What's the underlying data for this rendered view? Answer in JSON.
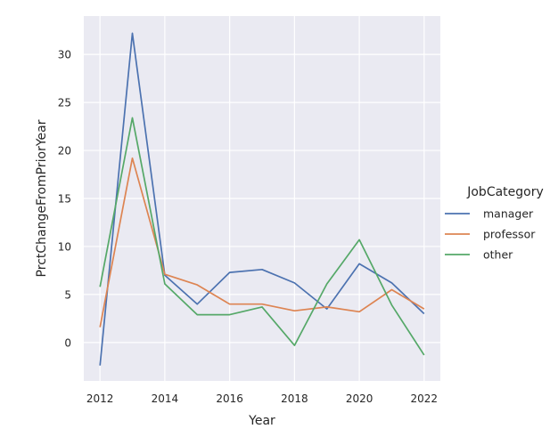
{
  "chart_data": {
    "type": "line",
    "xlabel": "Year",
    "ylabel": "PrctChangeFromPriorYear",
    "xlim": [
      2011.5,
      2022.5
    ],
    "ylim": [
      -4,
      34
    ],
    "xticks": [
      2012,
      2014,
      2016,
      2018,
      2020,
      2022
    ],
    "yticks": [
      0,
      5,
      10,
      15,
      20,
      25,
      30
    ],
    "grid": true,
    "legend": {
      "title": "JobCategory",
      "placement": "right"
    },
    "x": [
      2012,
      2013,
      2014,
      2015,
      2016,
      2017,
      2018,
      2019,
      2020,
      2021,
      2022
    ],
    "series": [
      {
        "name": "manager",
        "color": "#4c72b0",
        "values": [
          -2.4,
          32.2,
          7.0,
          4.0,
          7.3,
          7.6,
          6.2,
          3.5,
          8.2,
          6.2,
          3.0
        ]
      },
      {
        "name": "professor",
        "color": "#dd8452",
        "values": [
          1.6,
          19.2,
          7.1,
          6.0,
          4.0,
          4.0,
          3.3,
          3.7,
          3.2,
          5.5,
          3.5
        ]
      },
      {
        "name": "other",
        "color": "#55a868",
        "values": [
          5.8,
          23.4,
          6.1,
          2.9,
          2.9,
          3.7,
          -0.3,
          6.1,
          10.7,
          3.9,
          -1.3
        ]
      }
    ]
  }
}
